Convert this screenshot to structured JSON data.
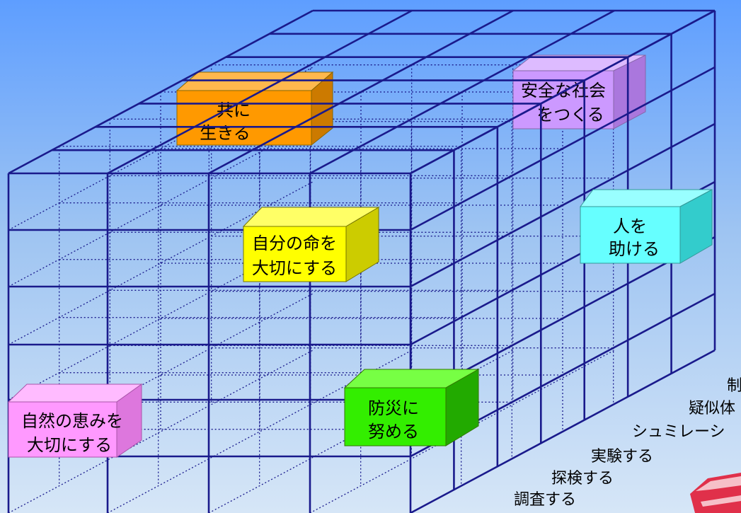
{
  "boxes": {
    "tomo": {
      "line1": "共に",
      "line2": "生きる",
      "color": "#ff9900"
    },
    "anzen": {
      "line1": "安全な社会",
      "line2": "をつくる",
      "color": "#cc99ff"
    },
    "jibun": {
      "line1": "自分の命を",
      "line2": "大切にする",
      "color": "#ffff00"
    },
    "hito": {
      "line1": "人を",
      "line2": "助ける",
      "color": "#66ffff"
    },
    "shizen": {
      "line1": "自然の恵みを",
      "line2": "大切にする",
      "color": "#ff99ff"
    },
    "bousai": {
      "line1": "防災に",
      "line2": "努める",
      "color": "#33ee00"
    }
  },
  "activities": [
    "調査する",
    "探検する",
    "実験する",
    "シュミレーシ",
    "疑似体",
    "制"
  ],
  "colors": {
    "grid": "#1a1a8c",
    "bg_top": "#5e9eff",
    "bg_bottom": "#d6e6f7"
  }
}
